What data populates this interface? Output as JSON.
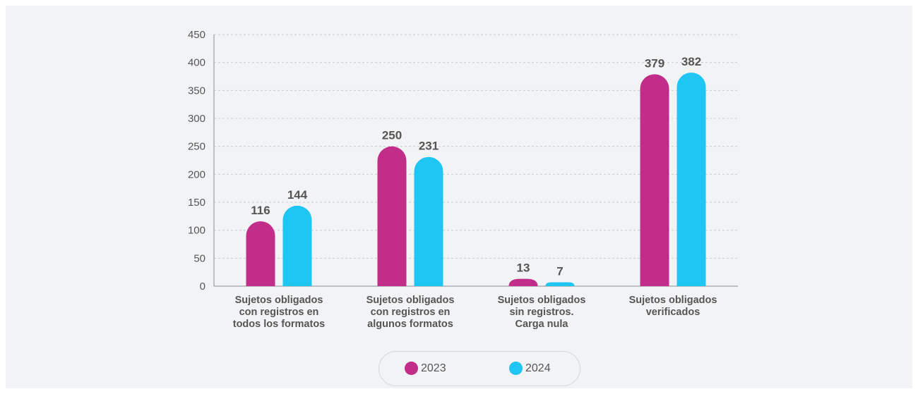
{
  "chart_data": {
    "type": "bar",
    "categories": [
      [
        "Sujetos obligados",
        "con registros en",
        "todos los formatos"
      ],
      [
        "Sujetos obligados",
        "con registros en",
        "algunos formatos"
      ],
      [
        "Sujetos obligados",
        "sin registros.",
        "Carga nula"
      ],
      [
        "Sujetos obligados",
        "verificados"
      ]
    ],
    "series": [
      {
        "name": "2023",
        "color": "#c22d8a",
        "values": [
          116,
          250,
          13,
          379
        ]
      },
      {
        "name": "2024",
        "color": "#1fc5f3",
        "values": [
          144,
          231,
          7,
          382
        ]
      }
    ],
    "ylim": [
      0,
      450
    ],
    "yticks": [
      0,
      50,
      100,
      150,
      200,
      250,
      300,
      350,
      400,
      450
    ],
    "grid": true,
    "legend": "bottom",
    "title": "",
    "xlabel": "",
    "ylabel": ""
  }
}
